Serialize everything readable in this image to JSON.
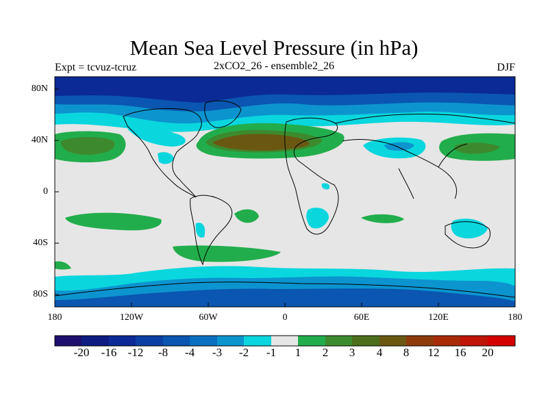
{
  "title": "Mean Sea Level Pressure (in hPa)",
  "subtitle_left": "Expt = tcvuz-tcruz",
  "subtitle_center": "2xCO2_26 - ensemble2_26",
  "subtitle_right": "DJF",
  "y_ticks": [
    "80N",
    "40N",
    "0",
    "40S",
    "80S"
  ],
  "x_ticks": [
    "180",
    "120W",
    "60W",
    "0",
    "60E",
    "120E",
    "180"
  ],
  "colorbar": {
    "levels": [
      "-20",
      "-16",
      "-12",
      "-8",
      "-4",
      "-3",
      "-2",
      "-1",
      "1",
      "2",
      "3",
      "4",
      "8",
      "12",
      "16",
      "20"
    ],
    "colors": [
      "#1e0f6e",
      "#0e1c82",
      "#0b2a96",
      "#0a3fa3",
      "#0a56b0",
      "#0a70c0",
      "#0c94cf",
      "#0ad6de",
      "#e6e6e6",
      "#22ad4c",
      "#3d8a2e",
      "#4d6e1c",
      "#6a5812",
      "#8f3a0c",
      "#a82a08",
      "#c01408",
      "#d40000"
    ]
  },
  "legend": {
    "colors": {
      "deep_low": "#0b2a96",
      "low": "#0a56b0",
      "mid_low": "#0c94cf",
      "weak_low": "#0ad6de",
      "neutral": "#e6e6e6",
      "weak_high": "#22ad4c",
      "mid_high": "#3d8a2e",
      "high": "#6a5812",
      "strong_high": "#8f3a0c"
    }
  }
}
